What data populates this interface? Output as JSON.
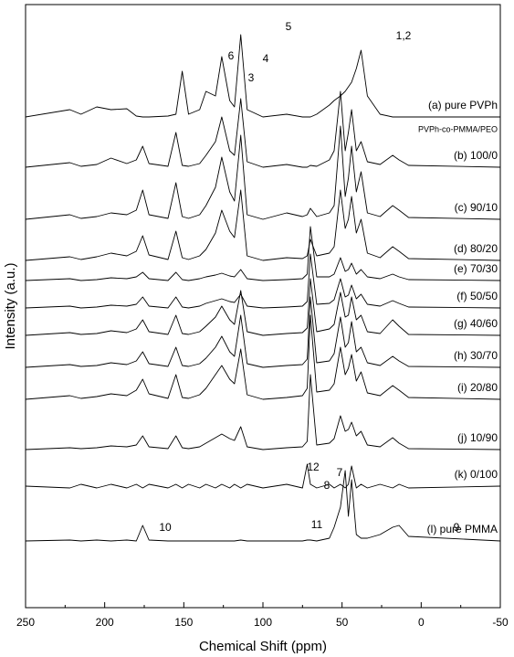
{
  "chart_data": {
    "type": "line",
    "x_label": "Chemical Shift (ppm)",
    "y_label": "Intensity (a.u.)",
    "color": "#000000",
    "xlim": [
      250,
      -50
    ],
    "xticks": [
      250,
      200,
      150,
      100,
      50,
      0,
      -50
    ],
    "ylim": [
      0,
      660
    ],
    "x": [
      250,
      222,
      215,
      205,
      196,
      186,
      180,
      176,
      172,
      160,
      155,
      151,
      147,
      140,
      136,
      130,
      126,
      121,
      118,
      114,
      110,
      100,
      85,
      75,
      72,
      70,
      66,
      58,
      55,
      51,
      48,
      46,
      44,
      41,
      38,
      34,
      26,
      18,
      14,
      8,
      -50
    ],
    "series": [
      {
        "name": "(a) pure PVPh",
        "values": [
          537,
          545,
          540,
          548,
          545,
          546,
          538,
          537,
          537,
          538,
          540,
          587,
          540,
          545,
          565,
          560,
          603,
          555,
          548,
          627,
          545,
          537,
          540,
          537,
          537,
          537,
          540,
          550,
          555,
          560,
          565,
          570,
          575,
          590,
          610,
          560,
          540,
          537,
          537,
          537,
          537
        ]
      },
      {
        "name": "(b) 100/0",
        "values": [
          482,
          487,
          483,
          485,
          492,
          486,
          490,
          505,
          486,
          483,
          520,
          484,
          483,
          486,
          495,
          510,
          537,
          500,
          495,
          557,
          488,
          482,
          485,
          482,
          482,
          484,
          483,
          490,
          500,
          565,
          500,
          520,
          545,
          500,
          510,
          488,
          485,
          495,
          490,
          484,
          482
        ]
      },
      {
        "name": "(c) 90/10",
        "values": [
          425,
          430,
          426,
          428,
          432,
          430,
          435,
          457,
          430,
          426,
          465,
          428,
          426,
          430,
          440,
          460,
          493,
          455,
          445,
          517,
          430,
          425,
          432,
          428,
          430,
          437,
          428,
          432,
          440,
          527,
          450,
          470,
          505,
          455,
          477,
          432,
          428,
          440,
          435,
          427,
          425
        ]
      },
      {
        "name": "(d) 80/20",
        "values": [
          380,
          384,
          381,
          384,
          388,
          385,
          390,
          407,
          386,
          381,
          412,
          383,
          381,
          385,
          392,
          410,
          435,
          412,
          405,
          457,
          385,
          380,
          383,
          382,
          385,
          403,
          385,
          388,
          395,
          457,
          415,
          425,
          450,
          410,
          425,
          388,
          383,
          395,
          390,
          382,
          380
        ]
      },
      {
        "name": "(e) 70/30",
        "values": [
          358,
          360,
          358,
          359,
          361,
          360,
          362,
          367,
          360,
          358,
          367,
          359,
          358,
          360,
          362,
          364,
          366,
          363,
          362,
          370,
          360,
          358,
          359,
          360,
          365,
          417,
          362,
          362,
          365,
          383,
          368,
          370,
          377,
          365,
          370,
          362,
          360,
          365,
          362,
          359,
          358
        ]
      },
      {
        "name": "(f) 50/50",
        "values": [
          328,
          330,
          328,
          329,
          331,
          330,
          332,
          340,
          330,
          328,
          340,
          329,
          328,
          330,
          333,
          336,
          338,
          335,
          334,
          343,
          330,
          328,
          329,
          330,
          335,
          387,
          332,
          333,
          337,
          360,
          340,
          342,
          353,
          338,
          343,
          332,
          330,
          336,
          333,
          329,
          328
        ]
      },
      {
        "name": "(g) 40/60",
        "values": [
          298,
          301,
          299,
          300,
          303,
          301,
          305,
          315,
          302,
          299,
          320,
          300,
          299,
          302,
          308,
          318,
          330,
          315,
          310,
          347,
          302,
          298,
          300,
          301,
          306,
          360,
          302,
          305,
          310,
          345,
          318,
          320,
          340,
          315,
          320,
          302,
          300,
          315,
          308,
          299,
          298
        ]
      },
      {
        "name": "(h) 30/70",
        "values": [
          263,
          266,
          264,
          265,
          268,
          266,
          270,
          280,
          267,
          264,
          285,
          265,
          264,
          267,
          273,
          285,
          297,
          280,
          275,
          320,
          267,
          263,
          265,
          266,
          272,
          340,
          268,
          270,
          278,
          318,
          285,
          290,
          313,
          280,
          285,
          268,
          265,
          275,
          270,
          264,
          263
        ]
      },
      {
        "name": "(i) 20/80",
        "values": [
          228,
          232,
          229,
          231,
          234,
          232,
          238,
          250,
          234,
          229,
          255,
          230,
          229,
          233,
          240,
          255,
          265,
          250,
          245,
          283,
          233,
          228,
          230,
          232,
          240,
          320,
          236,
          238,
          245,
          285,
          255,
          262,
          277,
          248,
          258,
          235,
          232,
          243,
          238,
          230,
          228
        ]
      },
      {
        "name": "(j) 10/90",
        "values": [
          173,
          175,
          174,
          175,
          177,
          176,
          178,
          188,
          176,
          174,
          188,
          175,
          174,
          176,
          180,
          186,
          190,
          185,
          183,
          198,
          176,
          173,
          175,
          176,
          182,
          255,
          178,
          180,
          185,
          210,
          193,
          195,
          203,
          188,
          193,
          178,
          176,
          186,
          180,
          174,
          173
        ]
      },
      {
        "name": "(k) 0/100",
        "values": [
          133,
          131,
          135,
          131,
          135,
          131,
          135,
          131,
          135,
          131,
          135,
          131,
          135,
          131,
          135,
          131,
          135,
          131,
          135,
          131,
          135,
          131,
          135,
          131,
          157,
          135,
          131,
          135,
          131,
          135,
          131,
          135,
          155,
          131,
          135,
          131,
          135,
          131,
          135,
          131,
          133
        ]
      },
      {
        "name": "(l) pure PMMA",
        "values": [
          73,
          74,
          73,
          74,
          73,
          74,
          73,
          90,
          74,
          73,
          73,
          73,
          73,
          73,
          73,
          73,
          73,
          73,
          73,
          74,
          73,
          73,
          73,
          73,
          74,
          74,
          73,
          76,
          88,
          110,
          150,
          100,
          140,
          80,
          76,
          76,
          80,
          88,
          90,
          78,
          73
        ]
      }
    ],
    "annotations": [
      "6",
      "3",
      "4",
      "5",
      "1,2",
      "PVPh-co-PMMA/PEO",
      "12",
      "8",
      "7",
      "11",
      "9",
      "10"
    ]
  }
}
